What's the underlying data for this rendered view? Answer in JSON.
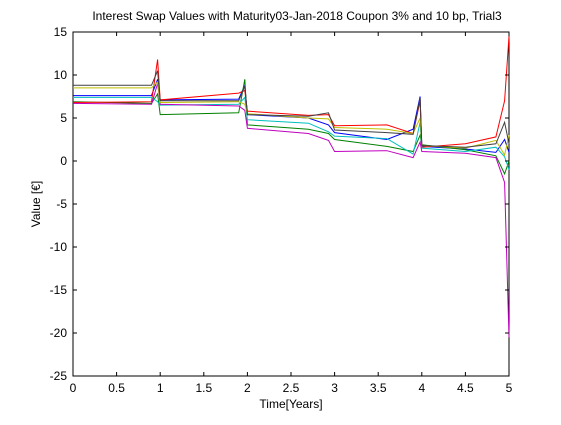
{
  "chart_data": {
    "type": "line",
    "title": "Interest Swap Values with Maturity03-Jan-2018 Coupon 3% and 10 bp, Trial3",
    "xlabel": "Time[Years]",
    "ylabel": "Value [€]",
    "xlim": [
      0,
      5
    ],
    "ylim": [
      -25,
      15
    ],
    "xticks": [
      "0",
      "0.5",
      "1",
      "1.5",
      "2",
      "2.5",
      "3",
      "3.5",
      "4",
      "4.5",
      "5"
    ],
    "yticks": [
      "15",
      "10",
      "5",
      "0",
      "-5",
      "-10",
      "-15",
      "-20",
      "-25"
    ],
    "xtick_values": [
      0,
      0.5,
      1,
      1.5,
      2,
      2.5,
      3,
      3.5,
      4,
      4.5,
      5
    ],
    "ytick_values": [
      15,
      10,
      5,
      0,
      -5,
      -10,
      -15,
      -20,
      -25
    ],
    "grid": false,
    "legend": "none",
    "series": [
      {
        "color": "#0000ff",
        "points": [
          [
            0,
            7.6
          ],
          [
            0.9,
            7.6
          ],
          [
            0.97,
            9.5
          ],
          [
            1.0,
            7.1
          ],
          [
            1.9,
            7.2
          ],
          [
            1.97,
            8.8
          ],
          [
            2.0,
            5.4
          ],
          [
            2.7,
            5.0
          ],
          [
            2.93,
            4.2
          ],
          [
            3.0,
            3.3
          ],
          [
            3.6,
            2.5
          ],
          [
            3.9,
            3.7
          ],
          [
            3.98,
            7.5
          ],
          [
            4.0,
            1.7
          ],
          [
            4.5,
            1.4
          ],
          [
            4.85,
            1.0
          ],
          [
            4.95,
            2.5
          ],
          [
            5.0,
            1.0
          ]
        ]
      },
      {
        "color": "#008000",
        "points": [
          [
            0,
            6.9
          ],
          [
            0.9,
            6.7
          ],
          [
            0.97,
            7.8
          ],
          [
            1.0,
            5.4
          ],
          [
            1.9,
            5.6
          ],
          [
            1.97,
            9.5
          ],
          [
            2.0,
            4.2
          ],
          [
            2.7,
            3.7
          ],
          [
            2.93,
            3.2
          ],
          [
            3.0,
            2.5
          ],
          [
            3.6,
            1.7
          ],
          [
            3.9,
            1.1
          ],
          [
            3.98,
            3.0
          ],
          [
            4.0,
            1.9
          ],
          [
            4.5,
            1.3
          ],
          [
            4.85,
            0.6
          ],
          [
            4.95,
            -1.5
          ],
          [
            5.0,
            0.0
          ]
        ]
      },
      {
        "color": "#ff0000",
        "points": [
          [
            0,
            6.8
          ],
          [
            0.9,
            6.9
          ],
          [
            0.97,
            11.8
          ],
          [
            1.0,
            7.1
          ],
          [
            1.9,
            7.9
          ],
          [
            1.97,
            8.2
          ],
          [
            2.0,
            5.8
          ],
          [
            2.7,
            5.3
          ],
          [
            2.93,
            5.4
          ],
          [
            3.0,
            4.1
          ],
          [
            3.6,
            4.2
          ],
          [
            3.9,
            3.2
          ],
          [
            3.98,
            7.0
          ],
          [
            4.0,
            1.6
          ],
          [
            4.5,
            2.0
          ],
          [
            4.85,
            2.8
          ],
          [
            4.95,
            7.0
          ],
          [
            5.0,
            14.5
          ]
        ]
      },
      {
        "color": "#00bfbf",
        "points": [
          [
            0,
            7.4
          ],
          [
            0.9,
            7.4
          ],
          [
            0.97,
            6.9
          ],
          [
            1.0,
            6.5
          ],
          [
            1.9,
            6.6
          ],
          [
            1.97,
            7.4
          ],
          [
            2.0,
            4.8
          ],
          [
            2.7,
            4.4
          ],
          [
            2.93,
            3.4
          ],
          [
            3.0,
            2.9
          ],
          [
            3.6,
            2.6
          ],
          [
            3.9,
            0.8
          ],
          [
            3.98,
            4.5
          ],
          [
            4.0,
            1.5
          ],
          [
            4.5,
            1.1
          ],
          [
            4.85,
            1.6
          ],
          [
            4.95,
            0.5
          ],
          [
            5.0,
            -1.0
          ]
        ]
      },
      {
        "color": "#bf00bf",
        "points": [
          [
            0,
            6.7
          ],
          [
            0.9,
            6.6
          ],
          [
            0.97,
            9.0
          ],
          [
            1.0,
            6.6
          ],
          [
            1.9,
            6.4
          ],
          [
            1.97,
            5.9
          ],
          [
            2.0,
            3.8
          ],
          [
            2.7,
            3.2
          ],
          [
            2.93,
            2.4
          ],
          [
            3.0,
            1.1
          ],
          [
            3.6,
            1.2
          ],
          [
            3.9,
            0.4
          ],
          [
            3.98,
            2.2
          ],
          [
            4.0,
            1.1
          ],
          [
            4.5,
            0.9
          ],
          [
            4.85,
            0.4
          ],
          [
            4.95,
            -2.5
          ],
          [
            5.0,
            -20.5
          ]
        ]
      },
      {
        "color": "#bfbf00",
        "points": [
          [
            0,
            8.5
          ],
          [
            0.9,
            8.5
          ],
          [
            0.97,
            9.2
          ],
          [
            1.0,
            6.8
          ],
          [
            1.9,
            6.9
          ],
          [
            1.97,
            6.6
          ],
          [
            2.0,
            5.5
          ],
          [
            2.7,
            5.0
          ],
          [
            2.93,
            4.9
          ],
          [
            3.0,
            3.9
          ],
          [
            3.6,
            3.7
          ],
          [
            3.9,
            3.2
          ],
          [
            3.98,
            5.0
          ],
          [
            4.0,
            1.8
          ],
          [
            4.5,
            1.5
          ],
          [
            4.85,
            2.4
          ],
          [
            4.95,
            0.7
          ],
          [
            5.0,
            3.0
          ]
        ]
      },
      {
        "color": "#404040",
        "points": [
          [
            0,
            8.8
          ],
          [
            0.9,
            8.8
          ],
          [
            0.97,
            10.5
          ],
          [
            1.0,
            7.0
          ],
          [
            1.9,
            7.0
          ],
          [
            1.97,
            8.7
          ],
          [
            2.0,
            5.4
          ],
          [
            2.7,
            5.2
          ],
          [
            2.93,
            5.6
          ],
          [
            3.0,
            3.6
          ],
          [
            3.6,
            3.3
          ],
          [
            3.9,
            3.1
          ],
          [
            3.98,
            7.3
          ],
          [
            4.0,
            1.8
          ],
          [
            4.5,
            1.6
          ],
          [
            4.85,
            2.0
          ],
          [
            4.95,
            4.5
          ],
          [
            5.0,
            2.0
          ]
        ]
      }
    ]
  }
}
